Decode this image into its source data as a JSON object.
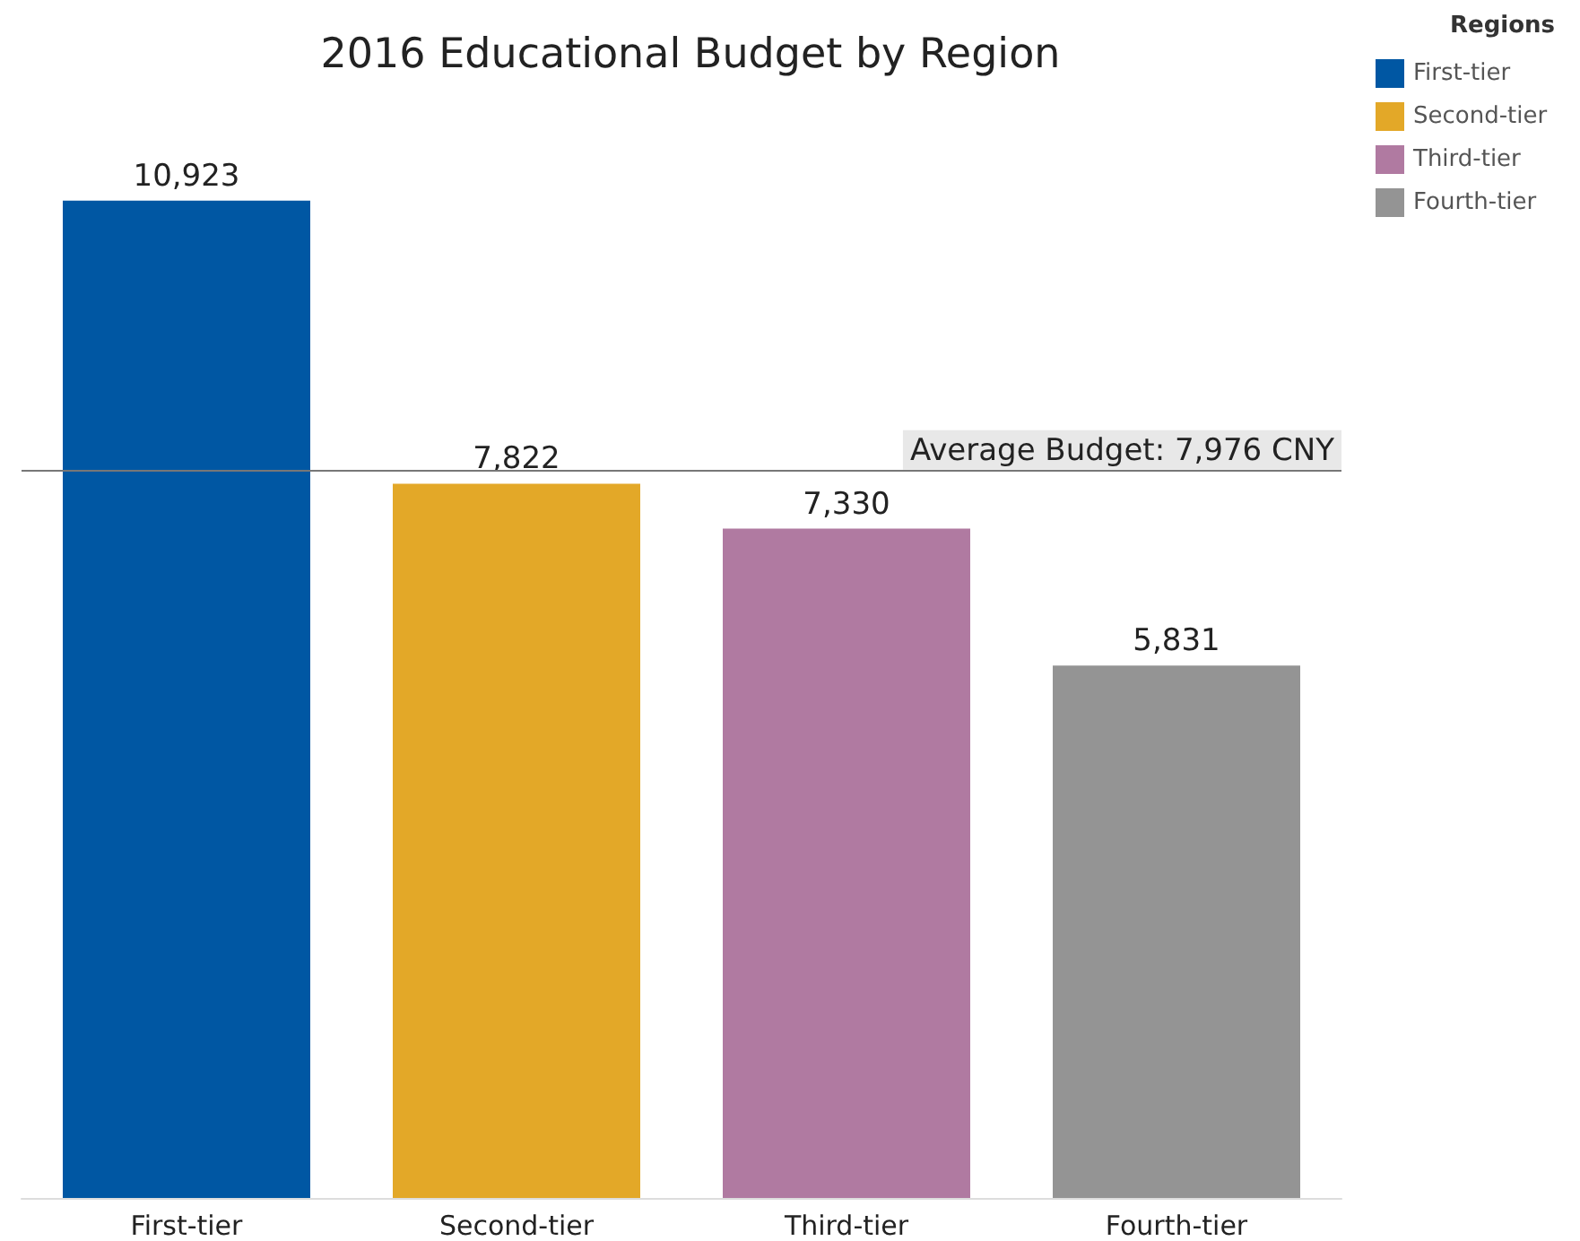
{
  "chart_data": {
    "type": "bar",
    "title": "2016 Educational Budget by Region",
    "categories": [
      "First-tier",
      "Second-tier",
      "Third-tier",
      "Fourth-tier"
    ],
    "series": [
      {
        "name": "First-tier",
        "color": "#0057a3",
        "values": [
          10923,
          null,
          null,
          null
        ],
        "value_labels": [
          "10,923",
          null,
          null,
          null
        ]
      },
      {
        "name": "Second-tier",
        "color": "#e3a828",
        "values": [
          null,
          7822,
          null,
          null
        ],
        "value_labels": [
          null,
          "7,822",
          null,
          null
        ]
      },
      {
        "name": "Third-tier",
        "color": "#b07aa1",
        "values": [
          null,
          null,
          7330,
          null
        ],
        "value_labels": [
          null,
          null,
          "7,330",
          null
        ]
      },
      {
        "name": "Fourth-tier",
        "color": "#949494",
        "values": [
          null,
          null,
          null,
          5831
        ],
        "value_labels": [
          null,
          null,
          null,
          "5,831"
        ]
      }
    ],
    "stacked": true,
    "tick_labels": "x",
    "ref_lines": [
      {
        "axis": "y",
        "value": 7976,
        "label": "Average Budget: 7,976 CNY",
        "color": "#777777"
      }
    ],
    "legend": "top right",
    "legend_title": "Regions",
    "grid": false
  }
}
